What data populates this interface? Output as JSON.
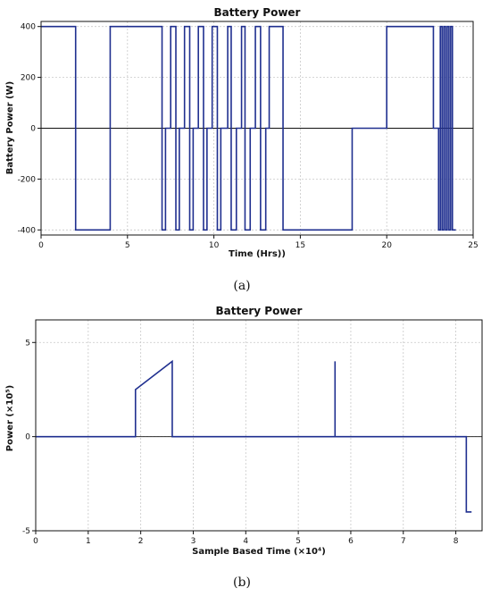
{
  "chart_data": [
    {
      "type": "line",
      "title": "Battery Power",
      "xlabel": "Time (Hrs))",
      "ylabel": "Battery Power (W)",
      "panel_label": "(a)",
      "xlim": [
        0,
        25
      ],
      "ylim": [
        -420,
        420
      ],
      "xticks": [
        0,
        5,
        10,
        15,
        20,
        25
      ],
      "yticks": [
        -400,
        -200,
        0,
        200,
        400
      ],
      "grid": true,
      "step_series": {
        "x": [
          0,
          2,
          2,
          4,
          4,
          7,
          7,
          7.2,
          7.2,
          7.5,
          7.5,
          7.8,
          7.8,
          8.0,
          8.0,
          8.3,
          8.3,
          8.6,
          8.6,
          8.8,
          8.8,
          9.1,
          9.1,
          9.4,
          9.4,
          9.6,
          9.6,
          9.9,
          9.9,
          10.2,
          10.2,
          10.4,
          10.4,
          10.8,
          10.8,
          11.0,
          11.0,
          11.3,
          11.3,
          11.6,
          11.6,
          11.8,
          11.8,
          12.1,
          12.1,
          12.4,
          12.4,
          12.7,
          12.7,
          13.0,
          13.0,
          13.2,
          13.2,
          14.0,
          14.0,
          18.0,
          18.0,
          20.0,
          20.0,
          22.7,
          22.7,
          23.0,
          23.0,
          23.1,
          23.1,
          23.2,
          23.2,
          23.3,
          23.3,
          23.4,
          23.4,
          23.5,
          23.5,
          23.6,
          23.6,
          23.7,
          23.7,
          23.8,
          23.8,
          24.0
        ],
        "y": [
          400,
          400,
          -400,
          -400,
          400,
          400,
          -400,
          -400,
          0,
          0,
          400,
          400,
          -400,
          -400,
          0,
          0,
          400,
          400,
          -400,
          -400,
          0,
          0,
          400,
          400,
          -400,
          -400,
          0,
          0,
          400,
          400,
          -400,
          -400,
          0,
          0,
          400,
          400,
          -400,
          -400,
          0,
          0,
          400,
          400,
          -400,
          -400,
          0,
          0,
          400,
          400,
          -400,
          -400,
          0,
          0,
          400,
          400,
          -400,
          -400,
          0,
          0,
          400,
          400,
          0,
          0,
          -400,
          -400,
          400,
          400,
          -400,
          -400,
          400,
          400,
          -400,
          -400,
          400,
          400,
          -400,
          -400,
          400,
          400,
          -400,
          -400
        ]
      }
    },
    {
      "type": "line",
      "title": "Battery Power",
      "xlabel": "Sample Based Time (×10⁴)",
      "ylabel": "Power (×10⁵)",
      "panel_label": "(b)",
      "xlim": [
        0,
        8.5
      ],
      "ylim": [
        -5,
        6.2
      ],
      "xticks": [
        0,
        1,
        2,
        3,
        4,
        5,
        6,
        7,
        8
      ],
      "yticks": [
        -5,
        0,
        5
      ],
      "grid": true,
      "series": {
        "x": [
          0,
          1.9,
          1.9,
          2.6,
          2.6,
          5.7,
          5.7,
          5.7,
          8.2,
          8.2,
          8.3
        ],
        "y": [
          0,
          0,
          2.5,
          4.0,
          0,
          0,
          4.0,
          0,
          0,
          -4.0,
          -4.0
        ]
      }
    }
  ]
}
